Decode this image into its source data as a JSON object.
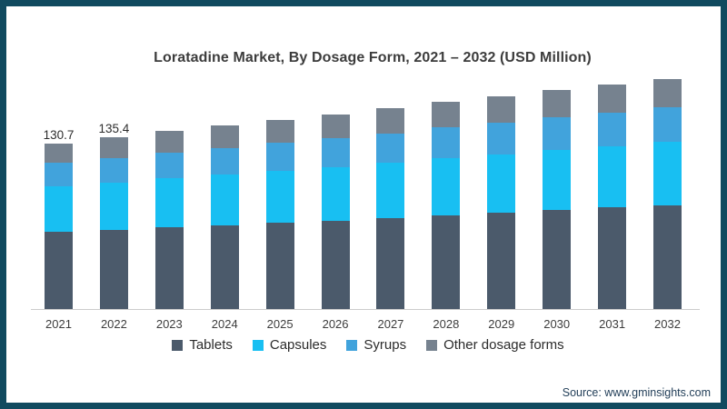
{
  "frame": {
    "border_color": "#114a5f",
    "background_color": "#ffffff"
  },
  "chart_data": {
    "type": "bar",
    "stacked": true,
    "title": "Loratadine Market, By Dosage Form, 2021 – 2032 (USD Million)",
    "ylabel": "USD Million",
    "xlabel": "",
    "grid": false,
    "legend_position": "bottom",
    "ylim": [
      0,
      190
    ],
    "categories": [
      "2021",
      "2022",
      "2023",
      "2024",
      "2025",
      "2026",
      "2027",
      "2028",
      "2029",
      "2030",
      "2031",
      "2032"
    ],
    "series": [
      {
        "name": "Tablets",
        "color": "#4b5a6b",
        "values": [
          60.7,
          62.4,
          64.4,
          66.1,
          68.0,
          69.8,
          71.7,
          74.0,
          75.9,
          78.1,
          80.0,
          82.0
        ]
      },
      {
        "name": "Capsules",
        "color": "#18bff2",
        "values": [
          36.2,
          37.3,
          38.8,
          40.0,
          41.2,
          42.4,
          43.7,
          45.0,
          46.2,
          47.6,
          48.7,
          50.0
        ]
      },
      {
        "name": "Syrups",
        "color": "#41a3dc",
        "values": [
          18.6,
          19.2,
          20.2,
          21.0,
          21.8,
          22.6,
          23.4,
          24.3,
          25.0,
          25.9,
          26.5,
          27.3
        ]
      },
      {
        "name": "Other dosage forms",
        "color": "#76828f",
        "values": [
          15.2,
          16.5,
          17.5,
          17.9,
          18.4,
          19.0,
          19.5,
          20.2,
          20.7,
          21.2,
          21.7,
          22.2
        ]
      }
    ],
    "totals": [
      130.7,
      135.4,
      140.9,
      145.0,
      149.4,
      153.8,
      158.3,
      163.5,
      167.8,
      172.8,
      176.9,
      181.5
    ],
    "annotations": [
      {
        "category": "2021",
        "text": "130.7"
      },
      {
        "category": "2022",
        "text": "135.4"
      }
    ]
  },
  "source": {
    "label": "Source: www.gminsights.com"
  }
}
